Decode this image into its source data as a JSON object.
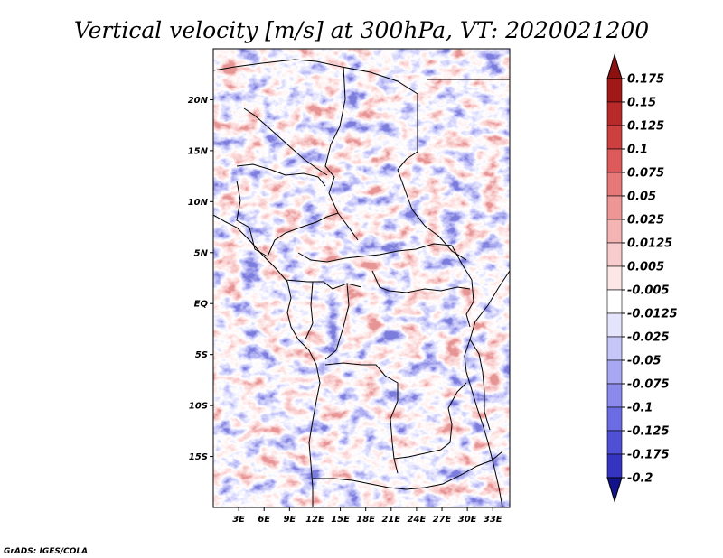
{
  "title": "Vertical velocity [m/s] at 300hPa, VT: 2020021200",
  "credit": "GrADS: IGES/COLA",
  "map": {
    "lon_range": [
      0,
      35
    ],
    "lat_range": [
      -20,
      25
    ],
    "lat_ticks": [
      {
        "value": 20,
        "label": "20N"
      },
      {
        "value": 15,
        "label": "15N"
      },
      {
        "value": 10,
        "label": "10N"
      },
      {
        "value": 5,
        "label": "5N"
      },
      {
        "value": 0,
        "label": "EQ"
      },
      {
        "value": -5,
        "label": "5S"
      },
      {
        "value": -10,
        "label": "10S"
      },
      {
        "value": -15,
        "label": "15S"
      }
    ],
    "lon_ticks": [
      {
        "value": 3,
        "label": "3E"
      },
      {
        "value": 6,
        "label": "6E"
      },
      {
        "value": 9,
        "label": "9E"
      },
      {
        "value": 12,
        "label": "12E"
      },
      {
        "value": 15,
        "label": "15E"
      },
      {
        "value": 18,
        "label": "18E"
      },
      {
        "value": 21,
        "label": "21E"
      },
      {
        "value": 24,
        "label": "24E"
      },
      {
        "value": 27,
        "label": "27E"
      },
      {
        "value": 30,
        "label": "30E"
      },
      {
        "value": 33,
        "label": "33E"
      }
    ]
  },
  "colorbar": {
    "levels": [
      {
        "label": "0.175",
        "color": "#a01818"
      },
      {
        "label": "0.15",
        "color": "#b82a2a"
      },
      {
        "label": "0.125",
        "color": "#cc4040"
      },
      {
        "label": "0.1",
        "color": "#dc5a5a"
      },
      {
        "label": "0.075",
        "color": "#e67878"
      },
      {
        "label": "0.05",
        "color": "#ee9696"
      },
      {
        "label": "0.025",
        "color": "#f4b4b4"
      },
      {
        "label": "0.0125",
        "color": "#f8cccc"
      },
      {
        "label": "0.005",
        "color": "#fce6e6"
      },
      {
        "label": "-0.005",
        "color": "#ffffff"
      },
      {
        "label": "-0.0125",
        "color": "#e4e4fc"
      },
      {
        "label": "-0.025",
        "color": "#c6c6f8"
      },
      {
        "label": "-0.05",
        "color": "#a8a8f2"
      },
      {
        "label": "-0.075",
        "color": "#8a8aec"
      },
      {
        "label": "-0.1",
        "color": "#6c6ce2"
      },
      {
        "label": "-0.125",
        "color": "#5050d4"
      },
      {
        "label": "-0.175",
        "color": "#3434c0"
      },
      {
        "label": "-0.2",
        "color": "#2020a8"
      }
    ],
    "top_arrow_color": "#8c1010",
    "bottom_arrow_color": "#12128c"
  }
}
